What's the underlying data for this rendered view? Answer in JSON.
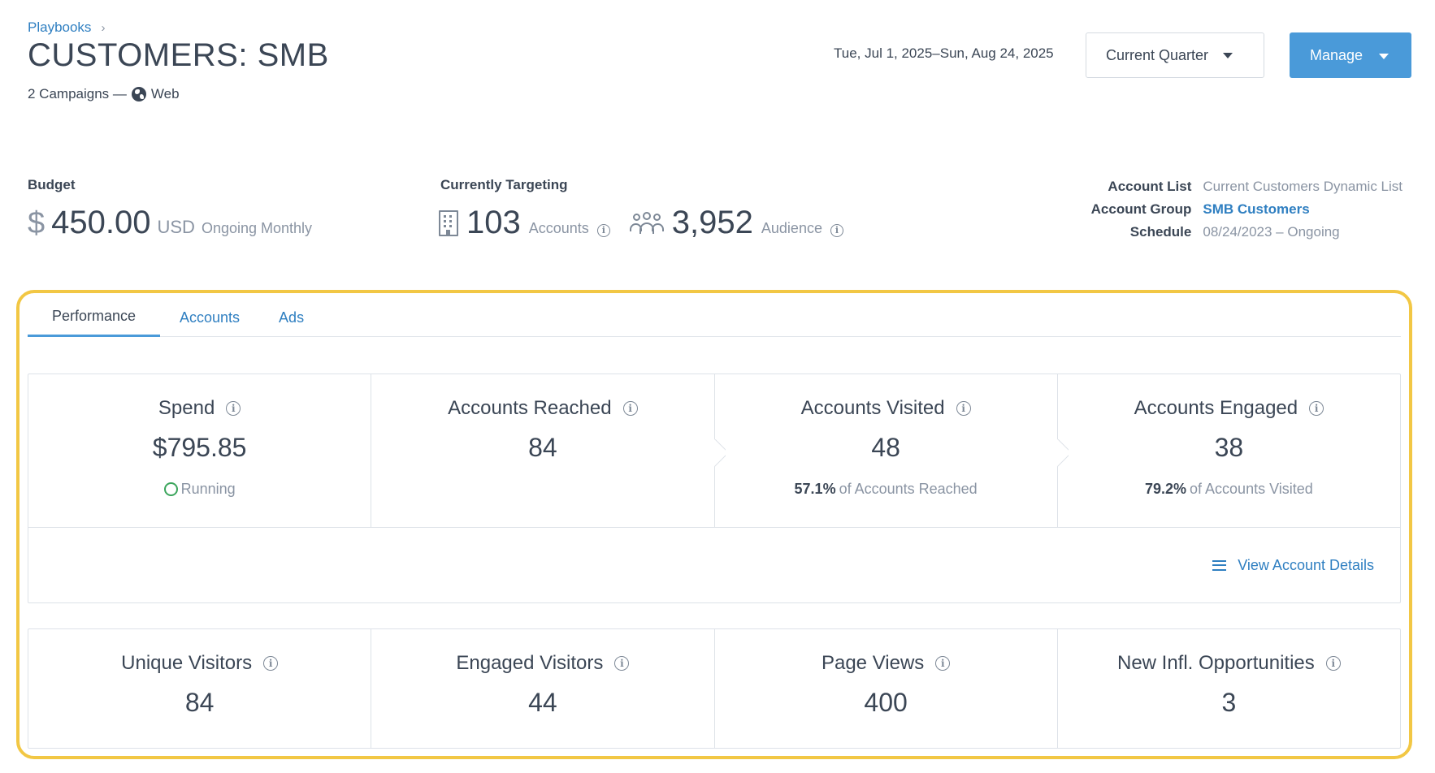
{
  "header": {
    "breadcrumb": "Playbooks",
    "breadcrumb_sep": "›",
    "title": "CUSTOMERS: SMB",
    "campaigns": "2 Campaigns —",
    "channel": "Web",
    "date_range": "Tue, Jul 1, 2025–Sun, Aug 24, 2025",
    "quarter_select": "Current Quarter",
    "manage_label": "Manage"
  },
  "budget": {
    "label": "Budget",
    "currency_symbol": "$",
    "amount": "450.00",
    "currency": "USD",
    "frequency": "Ongoing Monthly"
  },
  "targeting": {
    "label": "Currently Targeting",
    "accounts_value": "103",
    "accounts_label": "Accounts",
    "audience_value": "3,952",
    "audience_label": "Audience"
  },
  "meta": {
    "account_list_key": "Account List",
    "account_list_value": "Current Customers Dynamic List",
    "account_group_key": "Account Group",
    "account_group_value": "SMB Customers",
    "schedule_key": "Schedule",
    "schedule_value": "08/24/2023 – Ongoing"
  },
  "tabs": [
    {
      "label": "Performance"
    },
    {
      "label": "Accounts"
    },
    {
      "label": "Ads"
    }
  ],
  "funnel": {
    "spend_title": "Spend",
    "spend_value": "$795.85",
    "spend_status": "Running",
    "reached_title": "Accounts Reached",
    "reached_value": "84",
    "visited_title": "Accounts Visited",
    "visited_value": "48",
    "visited_pct": "57.1%",
    "visited_pct_label": "of Accounts Reached",
    "engaged_title": "Accounts Engaged",
    "engaged_value": "38",
    "engaged_pct": "79.2%",
    "engaged_pct_label": "of Accounts Visited",
    "view_details": "View Account Details"
  },
  "visitors": {
    "unique_title": "Unique Visitors",
    "unique_value": "84",
    "engaged_title": "Engaged Visitors",
    "engaged_value": "44",
    "pageviews_title": "Page Views",
    "pageviews_value": "400",
    "opps_title": "New Infl. Opportunities",
    "opps_value": "3"
  },
  "colors": {
    "accent": "#4a9ad9",
    "link": "#2f7fc1",
    "highlight": "#f2c744",
    "running": "#3ba55c"
  }
}
